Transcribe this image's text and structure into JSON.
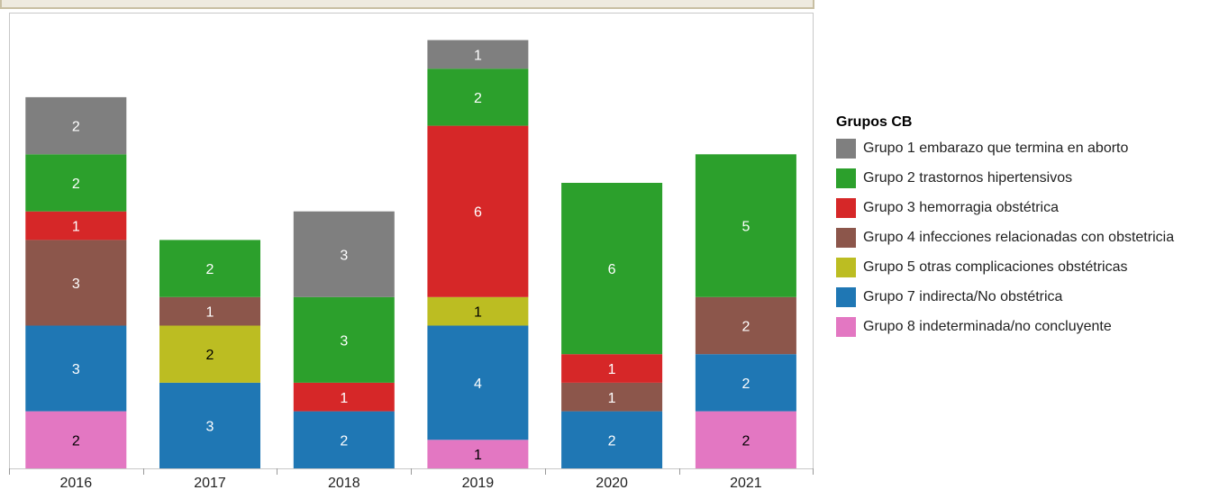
{
  "chart_data": {
    "type": "bar",
    "stacked": true,
    "categories": [
      "2016",
      "2017",
      "2018",
      "2019",
      "2020",
      "2021"
    ],
    "ylim": [
      0,
      15
    ],
    "grid": false,
    "legend_position": "right",
    "legend_title": "Grupos CB",
    "series": [
      {
        "name": "Grupo 8 indeterminada/no concluyente",
        "color": "#e377c2",
        "label_color": "#000000",
        "values": [
          2,
          0,
          0,
          1,
          0,
          2
        ]
      },
      {
        "name": "Grupo 7 indirecta/No obstétrica",
        "color": "#1f77b4",
        "label_color": "#ffffff",
        "values": [
          3,
          3,
          2,
          4,
          2,
          2
        ]
      },
      {
        "name": "Grupo 5 otras complicaciones obstétricas",
        "color": "#bcbd22",
        "label_color": "#000000",
        "values": [
          0,
          2,
          0,
          1,
          0,
          0
        ]
      },
      {
        "name": "Grupo 4 infecciones relacionadas con obstetricia",
        "color": "#8c564b",
        "label_color": "#ffffff",
        "values": [
          3,
          1,
          0,
          0,
          1,
          2
        ]
      },
      {
        "name": "Grupo 3 hemorragia obstétrica",
        "color": "#d62728",
        "label_color": "#ffffff",
        "values": [
          1,
          0,
          1,
          6,
          1,
          0
        ]
      },
      {
        "name": "Grupo 2 trastornos hipertensivos",
        "color": "#2ca02c",
        "label_color": "#ffffff",
        "values": [
          2,
          2,
          3,
          2,
          6,
          5
        ]
      },
      {
        "name": "Grupo 1 embarazo que termina en aborto",
        "color": "#7f7f7f",
        "label_color": "#ffffff",
        "values": [
          2,
          0,
          3,
          1,
          0,
          0
        ]
      }
    ]
  }
}
